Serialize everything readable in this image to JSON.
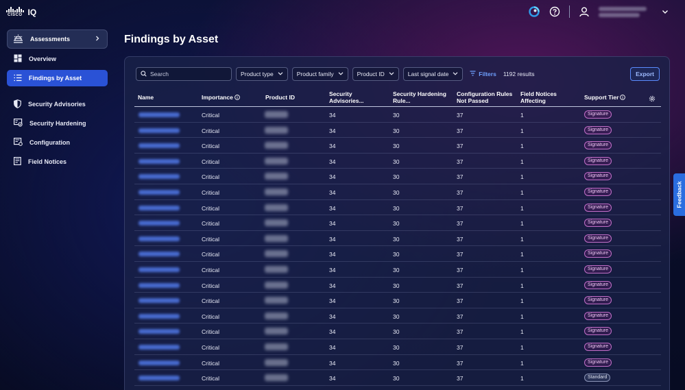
{
  "app": {
    "logo_word": "CISCO",
    "logo_suffix": "IQ"
  },
  "header": {
    "icons": [
      "cisco-assistant-icon",
      "help-icon",
      "user-icon",
      "chevron-down-icon"
    ]
  },
  "sidebar": {
    "assessments_label": "Assessments",
    "items": [
      {
        "label": "Overview",
        "icon": "overview-icon",
        "active": false
      },
      {
        "label": "Findings by Asset",
        "icon": "list-icon",
        "active": true
      },
      {
        "label": "Security Advisories",
        "icon": "shield-icon",
        "active": false
      },
      {
        "label": "Security Hardening",
        "icon": "hardening-icon",
        "active": false
      },
      {
        "label": "Configuration",
        "icon": "configuration-icon",
        "active": false
      },
      {
        "label": "Field Notices",
        "icon": "document-icon",
        "active": false
      }
    ]
  },
  "main": {
    "title": "Findings by Asset",
    "toolbar": {
      "search_placeholder": "Search",
      "dropdowns": [
        "Product type",
        "Product family",
        "Product ID",
        "Last signal date"
      ],
      "filters_label": "Filters",
      "results": "1192 results",
      "export_label": "Export"
    },
    "table": {
      "columns": [
        {
          "label": "Name"
        },
        {
          "label": "Importance"
        },
        {
          "label": "Product ID"
        },
        {
          "label": "Security Advisories..."
        },
        {
          "label": "Security Hardening Rule..."
        },
        {
          "label": "Configuration Rules Not Passed"
        },
        {
          "label": "Field Notices Affecting"
        },
        {
          "label": "Support Tier"
        }
      ],
      "rows": [
        {
          "importance": "Critical",
          "advisories": "34",
          "hardening": "30",
          "config": "37",
          "field_notices": "1",
          "tier": "Signature"
        },
        {
          "importance": "Critical",
          "advisories": "34",
          "hardening": "30",
          "config": "37",
          "field_notices": "1",
          "tier": "Signature"
        },
        {
          "importance": "Critical",
          "advisories": "34",
          "hardening": "30",
          "config": "37",
          "field_notices": "1",
          "tier": "Signature"
        },
        {
          "importance": "Critical",
          "advisories": "34",
          "hardening": "30",
          "config": "37",
          "field_notices": "1",
          "tier": "Signature"
        },
        {
          "importance": "Critical",
          "advisories": "34",
          "hardening": "30",
          "config": "37",
          "field_notices": "1",
          "tier": "Signature"
        },
        {
          "importance": "Critical",
          "advisories": "34",
          "hardening": "30",
          "config": "37",
          "field_notices": "1",
          "tier": "Signature"
        },
        {
          "importance": "Critical",
          "advisories": "34",
          "hardening": "30",
          "config": "37",
          "field_notices": "1",
          "tier": "Signature"
        },
        {
          "importance": "Critical",
          "advisories": "34",
          "hardening": "30",
          "config": "37",
          "field_notices": "1",
          "tier": "Signature"
        },
        {
          "importance": "Critical",
          "advisories": "34",
          "hardening": "30",
          "config": "37",
          "field_notices": "1",
          "tier": "Signature"
        },
        {
          "importance": "Critical",
          "advisories": "34",
          "hardening": "30",
          "config": "37",
          "field_notices": "1",
          "tier": "Signature"
        },
        {
          "importance": "Critical",
          "advisories": "34",
          "hardening": "30",
          "config": "37",
          "field_notices": "1",
          "tier": "Signature"
        },
        {
          "importance": "Critical",
          "advisories": "34",
          "hardening": "30",
          "config": "37",
          "field_notices": "1",
          "tier": "Signature"
        },
        {
          "importance": "Critical",
          "advisories": "34",
          "hardening": "30",
          "config": "37",
          "field_notices": "1",
          "tier": "Signature"
        },
        {
          "importance": "Critical",
          "advisories": "34",
          "hardening": "30",
          "config": "37",
          "field_notices": "1",
          "tier": "Signature"
        },
        {
          "importance": "Critical",
          "advisories": "34",
          "hardening": "30",
          "config": "37",
          "field_notices": "1",
          "tier": "Signature"
        },
        {
          "importance": "Critical",
          "advisories": "34",
          "hardening": "30",
          "config": "37",
          "field_notices": "1",
          "tier": "Signature"
        },
        {
          "importance": "Critical",
          "advisories": "34",
          "hardening": "30",
          "config": "37",
          "field_notices": "1",
          "tier": "Signature"
        },
        {
          "importance": "Critical",
          "advisories": "34",
          "hardening": "30",
          "config": "37",
          "field_notices": "1",
          "tier": "Standard"
        }
      ]
    }
  },
  "feedback_label": "Feedback",
  "colors": {
    "accent": "#2a52d6",
    "link": "#6fa0ff",
    "signature": "#c26fc8"
  }
}
